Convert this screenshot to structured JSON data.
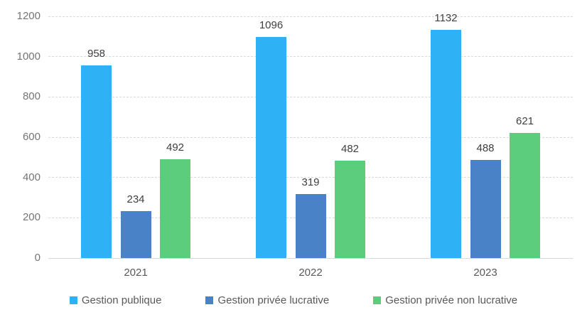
{
  "colors": {
    "grid": "#d9d9d9",
    "axis_line": "#d9d9d9",
    "tick_label": "#757575",
    "value_label": "#3f3f3f",
    "category_label": "#595959",
    "legend_label": "#595959",
    "background": "#ffffff"
  },
  "chart_data": {
    "type": "bar",
    "title": "",
    "categories": [
      "2021",
      "2022",
      "2023"
    ],
    "series": [
      {
        "name": "Gestion publique",
        "color": "#2fb1f5",
        "values": [
          958,
          1096,
          1132
        ]
      },
      {
        "name": "Gestion privée lucrative",
        "color": "#4a82c8",
        "values": [
          234,
          319,
          488
        ]
      },
      {
        "name": "Gestion privée non lucrative",
        "color": "#5bcd7c",
        "values": [
          492,
          482,
          621
        ]
      }
    ],
    "ylim": [
      0,
      1200
    ],
    "yticks": [
      0,
      200,
      400,
      600,
      800,
      1000,
      1200
    ],
    "grid": true,
    "data_labels": true,
    "legend_position": "bottom"
  }
}
